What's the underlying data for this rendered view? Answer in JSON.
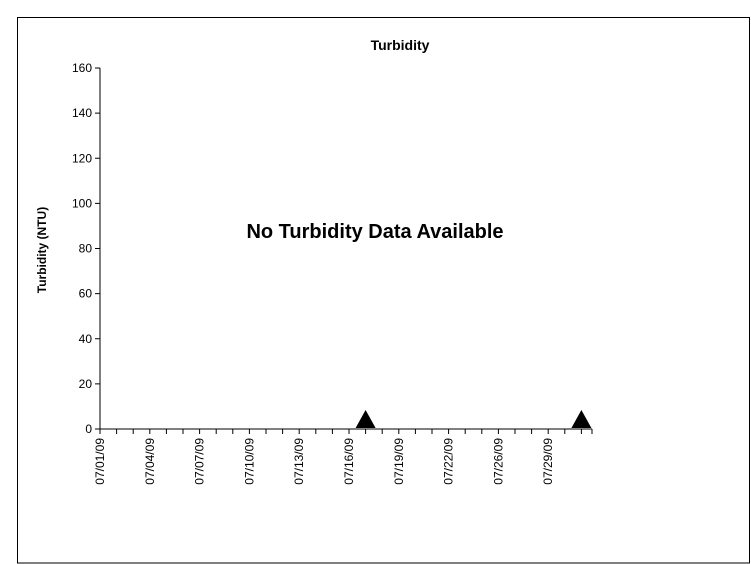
{
  "chart_data": {
    "type": "line",
    "title": "Turbidity",
    "ylabel": "Turbidity (NTU)",
    "annotation": "No Turbidity Data Available",
    "categories": [
      "07/01/09",
      null,
      null,
      "07/04/09",
      null,
      null,
      "07/07/09",
      null,
      null,
      "07/10/09",
      null,
      null,
      "07/13/09",
      null,
      null,
      "07/16/09",
      null,
      null,
      "07/19/09",
      null,
      null,
      "07/22/09",
      null,
      null,
      "07/26/09",
      null,
      null,
      "07/29/09",
      null,
      null
    ],
    "series": [
      {
        "color": "#000000",
        "marker": "triangle",
        "values": [
          null,
          null,
          null,
          null,
          null,
          null,
          null,
          null,
          null,
          null,
          null,
          null,
          null,
          null,
          null,
          null,
          4,
          null,
          null,
          null,
          null,
          null,
          null,
          null,
          null,
          null,
          null,
          null,
          null,
          4
        ]
      }
    ],
    "ylim": [
      0,
      160
    ],
    "yticks": [
      0,
      20,
      40,
      60,
      80,
      100,
      120,
      140,
      160
    ],
    "grid": false
  }
}
